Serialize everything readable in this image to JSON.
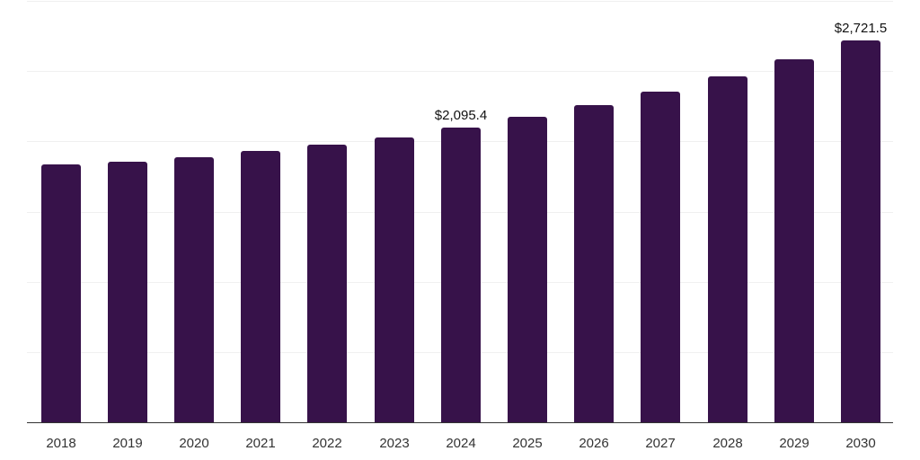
{
  "chart_data": {
    "type": "bar",
    "title": "",
    "xlabel": "",
    "ylabel": "",
    "categories": [
      "2018",
      "2019",
      "2020",
      "2021",
      "2022",
      "2023",
      "2024",
      "2025",
      "2026",
      "2027",
      "2028",
      "2029",
      "2030"
    ],
    "values": [
      1833,
      1852,
      1884,
      1929,
      1974,
      2025,
      2095.4,
      2172,
      2256,
      2352,
      2461,
      2583,
      2721.5
    ],
    "data_labels": [
      {
        "category": "2024",
        "text": "$2,095.4"
      },
      {
        "category": "2030",
        "text": "$2,721.5"
      }
    ],
    "ylim": [
      0,
      3000
    ],
    "grid": true,
    "gridline_step": 500,
    "bar_color": "#37124a",
    "legend": null
  },
  "labels": {
    "label_2024": "$2,095.4",
    "label_2030": "$2,721.5"
  }
}
